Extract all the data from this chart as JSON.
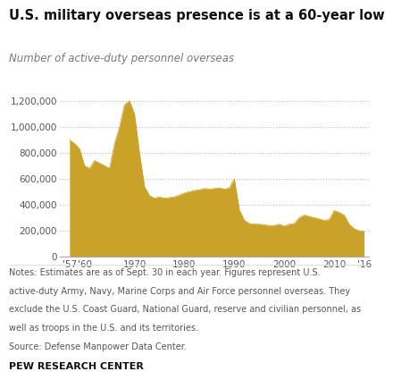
{
  "title": "U.S. military overseas presence is at a 60-year low",
  "subtitle": "Number of active-duty personnel overseas",
  "fill_color": "#C9A227",
  "background_color": "#ffffff",
  "notes_line1": "Notes: Estimates are as of Sept. 30 in each year. Figures represent U.S.",
  "notes_line2": "active-duty Army, Navy, Marine Corps and Air Force personnel overseas. They",
  "notes_line3": "exclude the U.S. Coast Guard, National Guard, reserve and civilian personnel, as",
  "notes_line4": "well as troops in the U.S. and its territories.",
  "notes_line5": "Source: Defense Manpower Data Center.",
  "source_label": "PEW RESEARCH CENTER",
  "yticks": [
    0,
    200000,
    400000,
    600000,
    800000,
    1000000,
    1200000
  ],
  "ylim": [
    0,
    1350000
  ],
  "xtick_labels": [
    "'57",
    "'60",
    "",
    "1970",
    "",
    "1980",
    "",
    "1990",
    "",
    "2000",
    "",
    "2010",
    "'16"
  ],
  "xtick_positions": [
    1957,
    1960,
    1965,
    1970,
    1975,
    1980,
    1985,
    1990,
    1995,
    2000,
    2005,
    2010,
    2016
  ],
  "xlim": [
    1955,
    2017
  ],
  "years": [
    1957,
    1958,
    1959,
    1960,
    1961,
    1962,
    1963,
    1964,
    1965,
    1966,
    1967,
    1968,
    1969,
    1970,
    1971,
    1972,
    1973,
    1974,
    1975,
    1976,
    1977,
    1978,
    1979,
    1980,
    1981,
    1982,
    1983,
    1984,
    1985,
    1986,
    1987,
    1988,
    1989,
    1990,
    1991,
    1992,
    1993,
    1994,
    1995,
    1996,
    1997,
    1998,
    1999,
    2000,
    2001,
    2002,
    2003,
    2004,
    2005,
    2006,
    2007,
    2008,
    2009,
    2010,
    2011,
    2012,
    2013,
    2014,
    2015,
    2016
  ],
  "values": [
    900000,
    870000,
    830000,
    700000,
    680000,
    740000,
    720000,
    700000,
    680000,
    870000,
    1000000,
    1170000,
    1200000,
    1100000,
    800000,
    540000,
    470000,
    450000,
    460000,
    450000,
    455000,
    460000,
    475000,
    490000,
    500000,
    510000,
    515000,
    525000,
    520000,
    525000,
    530000,
    520000,
    530000,
    600000,
    360000,
    280000,
    255000,
    250000,
    250000,
    245000,
    240000,
    240000,
    250000,
    235000,
    250000,
    255000,
    300000,
    320000,
    310000,
    300000,
    290000,
    280000,
    285000,
    355000,
    340000,
    320000,
    250000,
    215000,
    200000,
    195000
  ]
}
